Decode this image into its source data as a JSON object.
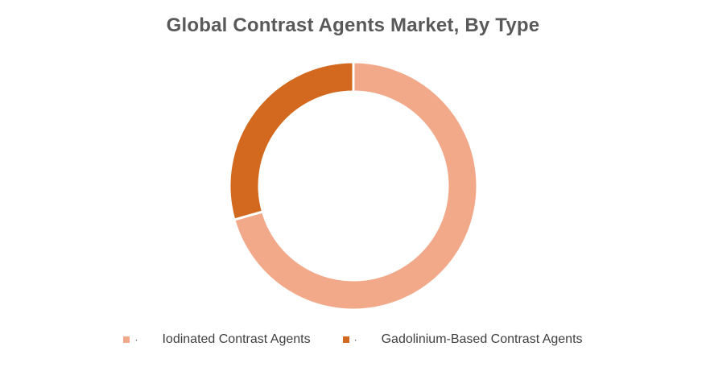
{
  "chart_data": {
    "type": "pie",
    "title": "Global Contrast Agents Market, By Type",
    "categories": [
      "Iodinated Contrast Agents",
      "Gadolinium-Based Contrast Agents"
    ],
    "values": [
      70.6,
      29.4
    ],
    "colors": [
      "#f2a98a",
      "#d2691e"
    ],
    "donut": true,
    "legend_position": "bottom"
  },
  "legend": {
    "bullet": "·"
  }
}
